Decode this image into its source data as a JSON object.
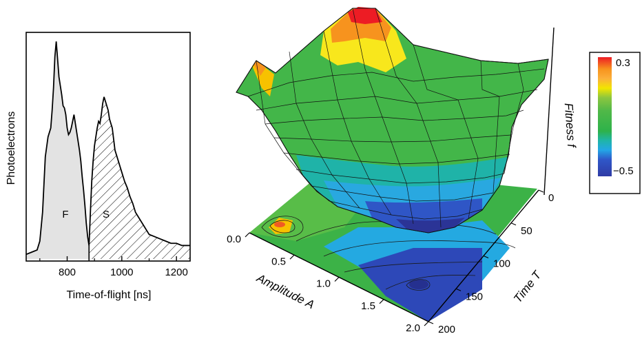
{
  "chart_data": [
    {
      "type": "area",
      "xlabel": "Time-of-flight [ns]",
      "ylabel": "Photoelectrons",
      "xlim": [
        650,
        1250
      ],
      "ylim": [
        0,
        1
      ],
      "xticks": [
        800,
        1000,
        1200
      ],
      "grid": false,
      "regions": [
        {
          "label": "F",
          "range": [
            650,
            880
          ],
          "fill": "solid-gray"
        },
        {
          "label": "S",
          "range": [
            880,
            1250
          ],
          "fill": "hatched"
        }
      ],
      "x": [
        650,
        670,
        690,
        700,
        710,
        720,
        730,
        740,
        745,
        750,
        755,
        760,
        765,
        770,
        775,
        780,
        785,
        790,
        795,
        800,
        805,
        810,
        815,
        820,
        825,
        830,
        835,
        840,
        845,
        850,
        855,
        860,
        865,
        870,
        875,
        880,
        885,
        890,
        895,
        900,
        905,
        910,
        915,
        920,
        925,
        930,
        935,
        940,
        945,
        950,
        955,
        960,
        965,
        970,
        975,
        980,
        985,
        990,
        995,
        1000,
        1010,
        1020,
        1030,
        1040,
        1050,
        1060,
        1070,
        1080,
        1090,
        1100,
        1120,
        1140,
        1160,
        1180,
        1200,
        1220,
        1240,
        1250
      ],
      "values": [
        0.03,
        0.04,
        0.05,
        0.09,
        0.22,
        0.47,
        0.56,
        0.6,
        0.68,
        0.78,
        0.92,
        0.99,
        0.91,
        0.83,
        0.79,
        0.75,
        0.7,
        0.69,
        0.66,
        0.6,
        0.57,
        0.58,
        0.6,
        0.63,
        0.66,
        0.62,
        0.58,
        0.54,
        0.5,
        0.45,
        0.38,
        0.32,
        0.25,
        0.17,
        0.11,
        0.07,
        0.22,
        0.36,
        0.45,
        0.52,
        0.56,
        0.6,
        0.63,
        0.62,
        0.66,
        0.71,
        0.74,
        0.72,
        0.7,
        0.68,
        0.64,
        0.62,
        0.6,
        0.55,
        0.5,
        0.48,
        0.46,
        0.44,
        0.42,
        0.4,
        0.36,
        0.33,
        0.29,
        0.26,
        0.22,
        0.2,
        0.18,
        0.16,
        0.14,
        0.12,
        0.11,
        0.1,
        0.09,
        0.08,
        0.08,
        0.07,
        0.07,
        0.07
      ]
    },
    {
      "type": "surface",
      "zlabel": "Fitness f",
      "xlabel": "Amplitude A",
      "ylabel": "Time T",
      "xticks": [
        "0.0",
        "0.5",
        "1.0",
        "1.5",
        "2.0"
      ],
      "yticks": [
        "0",
        "50",
        "100",
        "150",
        "200"
      ],
      "xlim": [
        0,
        2
      ],
      "ylim": [
        0,
        200
      ],
      "zlim": [
        -0.5,
        0.3
      ],
      "projection": "contour map on base plane",
      "colorbar": {
        "labels": [
          "0.3",
          "−0.5"
        ],
        "position": "right"
      },
      "features": [
        {
          "description": "maximum",
          "amplitude": 0.25,
          "time": 0,
          "fitness": 0.3
        },
        {
          "description": "minimum",
          "amplitude": 1.6,
          "time": 175,
          "fitness": -0.5
        }
      ]
    }
  ]
}
